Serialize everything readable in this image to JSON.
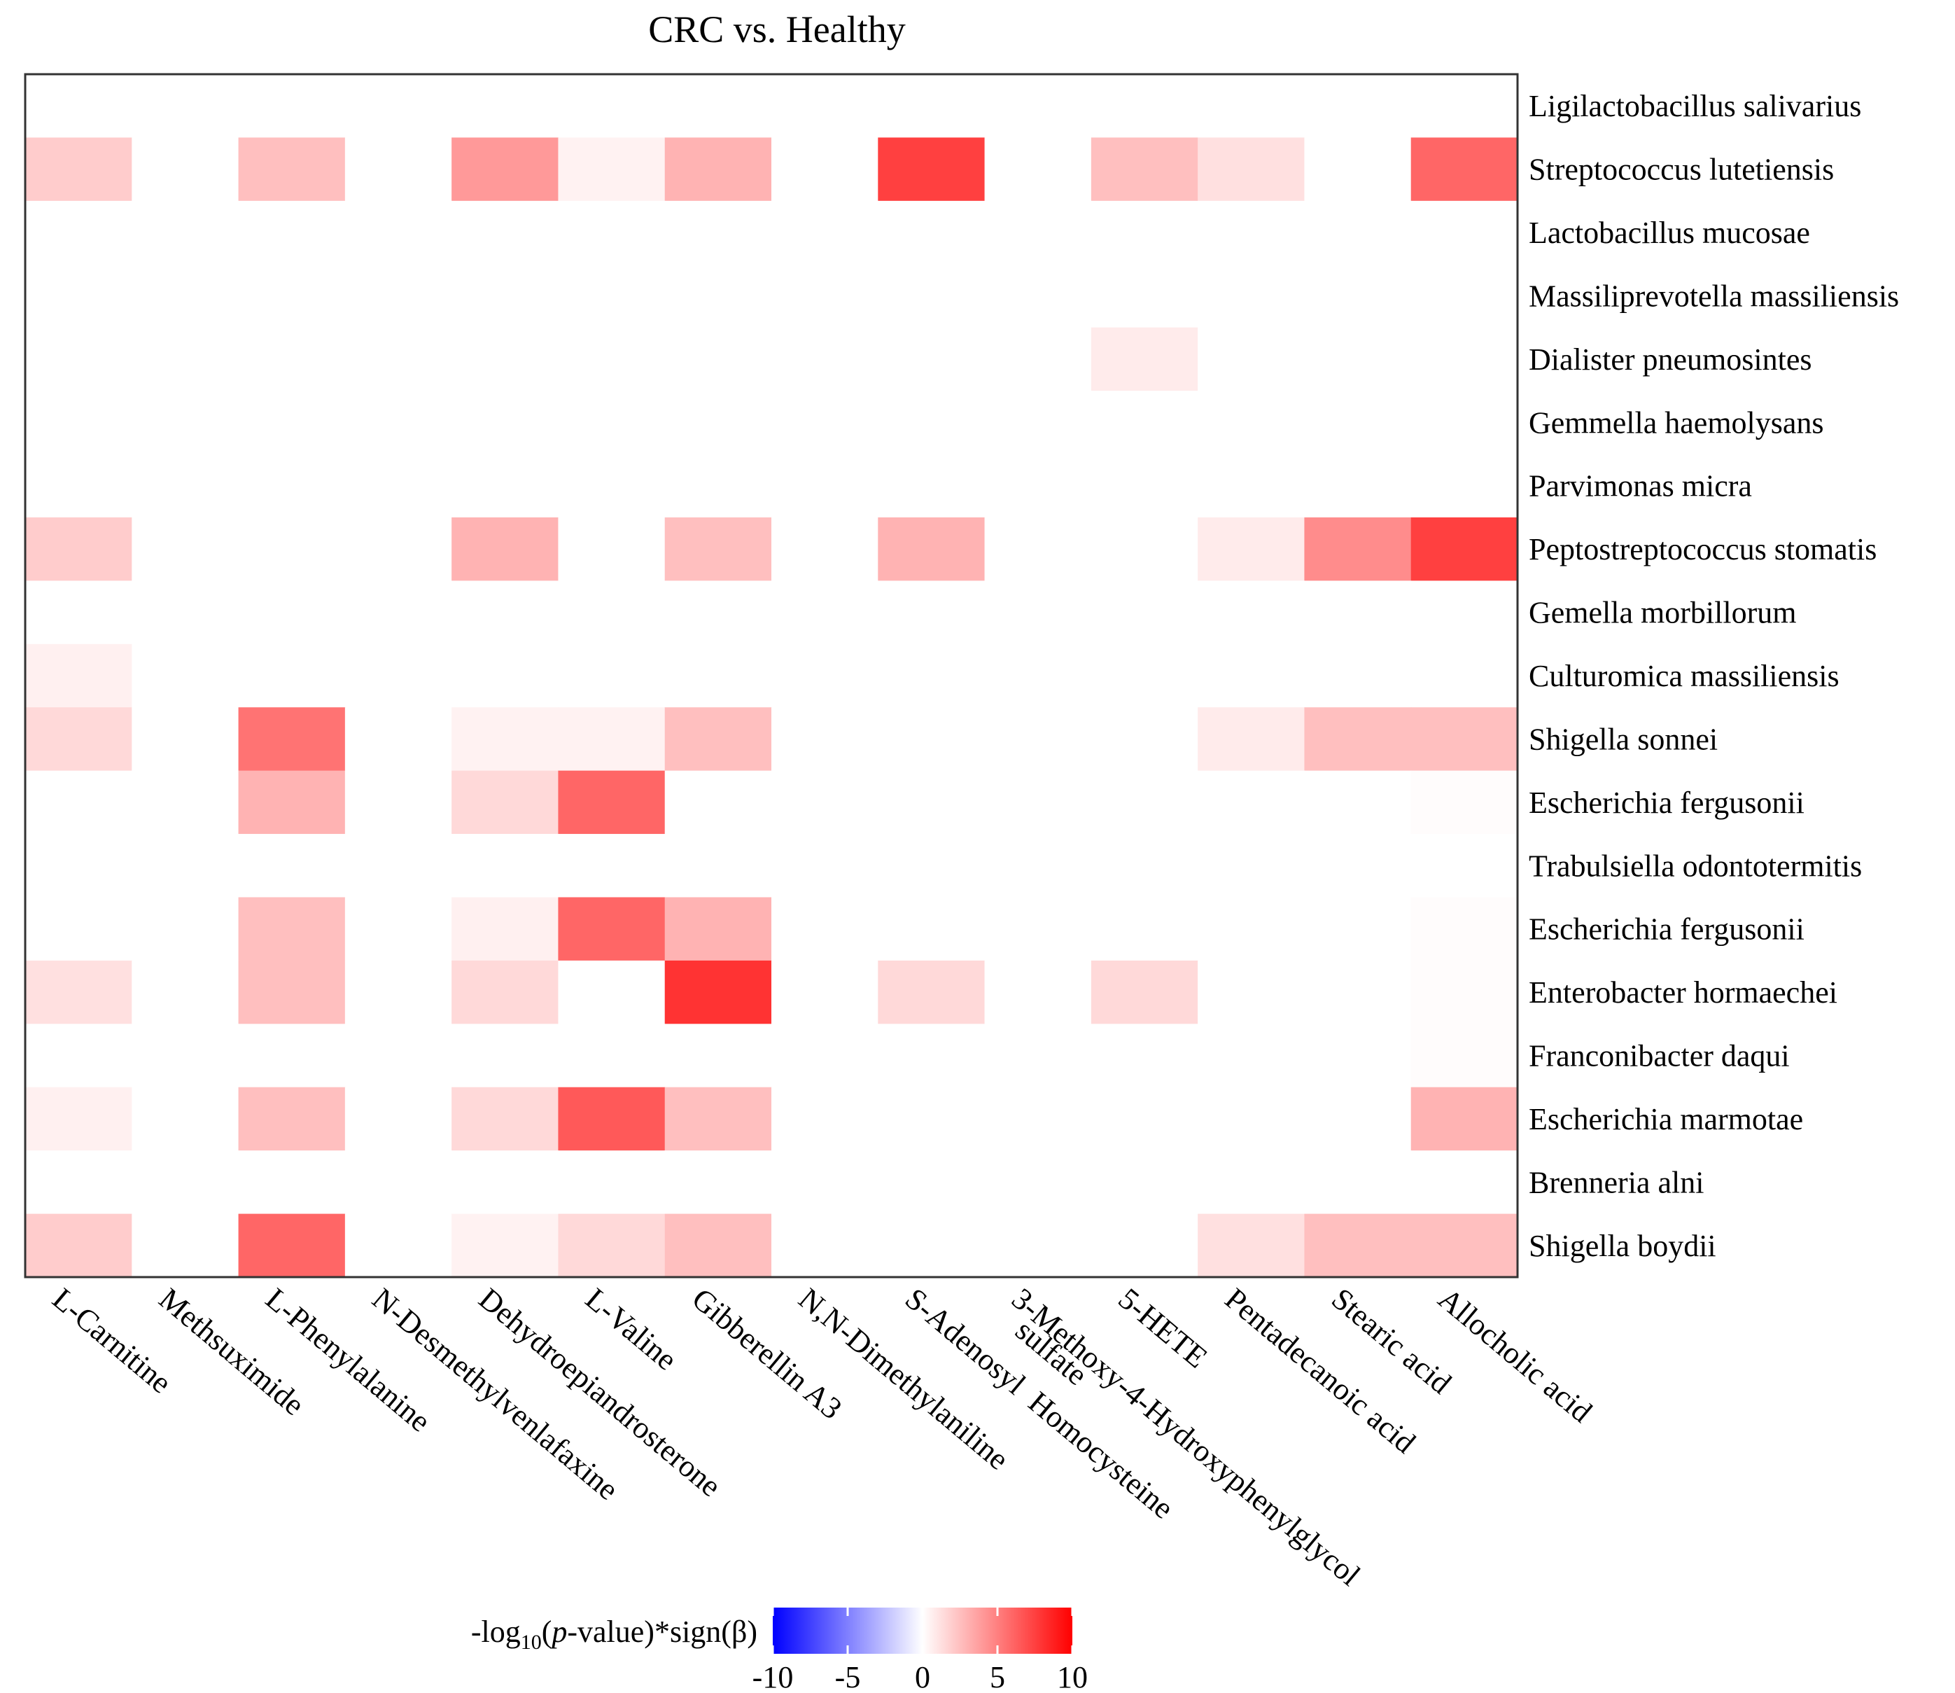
{
  "chart_data": {
    "type": "heatmap",
    "title": "CRC vs. Healthy",
    "columns": [
      "L-Carnitine",
      "Methsuximide",
      "L-Phenylalanine",
      "N-Desmethylvenlafaxine",
      "Dehydroepiandrosterone",
      "L-Valine",
      "Gibberellin A3",
      "N,N-Dimethylaniline",
      "S-Adenosyl Homocysteine",
      "3-Methoxy-4-Hydroxyphenylglycol sulfate",
      "5-HETE",
      "Pentadecanoic acid",
      "Stearic acid",
      "Allocholic acid"
    ],
    "col_label_display": [
      "L-Carnitine",
      "Methsuximide",
      "L-Phenylalanine",
      "N-Desmethylvenlafaxine",
      "Dehydroepiandrosterone",
      "L-Valine",
      "Gibberellin A3",
      "N,N-Dimethylaniline",
      "S-Adenosyl  Homocysteine",
      "3-Methoxy-4-Hydroxyphenylglycol",
      "5-HETE",
      "Pentadecanoic acid",
      "Stearic acid",
      "Allocholic acid"
    ],
    "col_label_extra": "sulfate",
    "rows": [
      "Ligilactobacillus salivarius",
      "Streptococcus lutetiensis",
      "Lactobacillus mucosae",
      "Massiliprevotella massiliensis",
      "Dialister pneumosintes",
      "Gemmella haemolysans",
      "Parvimonas micra",
      "Peptostreptococcus stomatis",
      "Gemella morbillorum",
      "Culturomica massiliensis",
      "Shigella sonnei",
      "Escherichia fergusonii",
      "Trabulsiella odontotermitis",
      "Escherichia fergusonii",
      "Enterobacter hormaechei",
      "Franconibacter daqui",
      "Escherichia marmotae",
      "Brenneria alni",
      "Shigella boydii"
    ],
    "values": [
      [
        0,
        0,
        0,
        0,
        0,
        0,
        0,
        0,
        0,
        0,
        0,
        0,
        0,
        0
      ],
      [
        2,
        0,
        2.5,
        0,
        4,
        0.5,
        3,
        0,
        7.5,
        0,
        2.5,
        1.2,
        0,
        6
      ],
      [
        0,
        0,
        0,
        0,
        0,
        0,
        0,
        0,
        0,
        0,
        0,
        0,
        0,
        0
      ],
      [
        0,
        0,
        0,
        0,
        0,
        0,
        0,
        0,
        0,
        0,
        0,
        0,
        0,
        0
      ],
      [
        0,
        0,
        0,
        0,
        0,
        0,
        0,
        0,
        0,
        0,
        0.8,
        0,
        0,
        0
      ],
      [
        0,
        0,
        0,
        0,
        0,
        0,
        0,
        0,
        0,
        0,
        0,
        0,
        0,
        0
      ],
      [
        0,
        0,
        0,
        0,
        0,
        0,
        0,
        0,
        0,
        0,
        0,
        0,
        0,
        0
      ],
      [
        2,
        0,
        0,
        0,
        3,
        0,
        2.5,
        0,
        3,
        0,
        0,
        0.8,
        4.5,
        7.5
      ],
      [
        0,
        0,
        0,
        0,
        0,
        0,
        0,
        0,
        0,
        0,
        0,
        0,
        0,
        0
      ],
      [
        0.6,
        0,
        0,
        0,
        0,
        0,
        0,
        0,
        0,
        0,
        0,
        0,
        0,
        0
      ],
      [
        1.5,
        0,
        5.5,
        0,
        0.5,
        0.5,
        2.5,
        0,
        0,
        0,
        0,
        0.8,
        2.5,
        2.5
      ],
      [
        0,
        0,
        3,
        0,
        1.5,
        6,
        0,
        0,
        0,
        0,
        0,
        0,
        0,
        0.1
      ],
      [
        0,
        0,
        0,
        0,
        0,
        0,
        0,
        0,
        0,
        0,
        0,
        0,
        0,
        0
      ],
      [
        0,
        0,
        2.5,
        0,
        0.6,
        6,
        3,
        0,
        0,
        0,
        0,
        0,
        0,
        0.1
      ],
      [
        1.2,
        0,
        2.5,
        0,
        1.5,
        0,
        8,
        0,
        1.5,
        0,
        1.5,
        0,
        0,
        0.1
      ],
      [
        0,
        0,
        0,
        0,
        0,
        0,
        0,
        0,
        0,
        0,
        0,
        0,
        0,
        0.1
      ],
      [
        0.6,
        0,
        2.5,
        0,
        1.5,
        6.5,
        2.5,
        0,
        0,
        0,
        0,
        0,
        0,
        3
      ],
      [
        0,
        0,
        0,
        0,
        0,
        0,
        0,
        0,
        0,
        0,
        0,
        0,
        0,
        0
      ],
      [
        2,
        0,
        6,
        0,
        0.5,
        1.5,
        2.5,
        0,
        0,
        0,
        0,
        1.2,
        2.5,
        2.5
      ]
    ],
    "colorbar": {
      "label_prefix": "-log",
      "label_sub": "10",
      "label_paren_open": "(",
      "label_italic": "p",
      "label_suffix": "-value)*sign(β)",
      "range": [
        -10,
        10
      ],
      "ticks": [
        "-10",
        "-5",
        "0",
        "5",
        "10"
      ],
      "colors": {
        "low": "#0000ff",
        "mid": "#ffffff",
        "high": "#ff0000"
      }
    }
  }
}
